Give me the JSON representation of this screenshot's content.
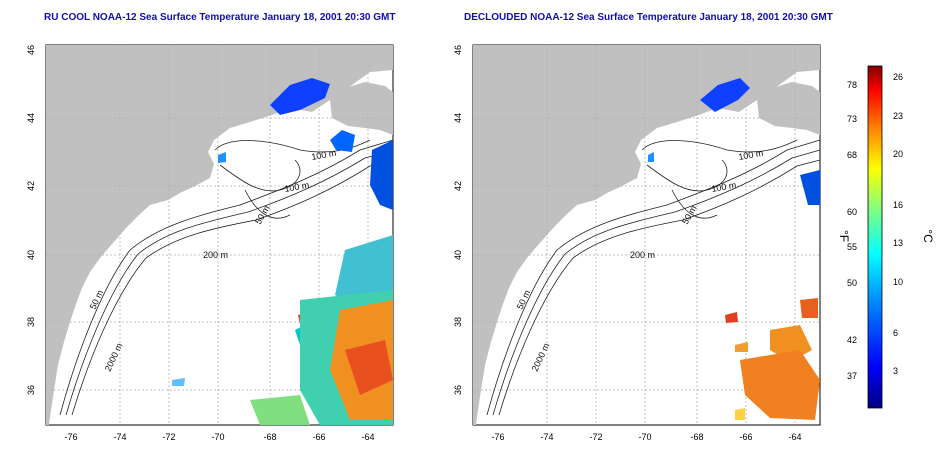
{
  "panels": [
    {
      "title": "RU COOL NOAA-12 Sea Surface Temperature January 18, 2001 20:30 GMT",
      "x_ticks": [
        "-76",
        "-74",
        "-72",
        "-70",
        "-68",
        "-66",
        "-64"
      ],
      "y_ticks": [
        "36",
        "38",
        "40",
        "42",
        "44",
        "46"
      ],
      "contour_labels": [
        "100 m",
        "100 m",
        "50 m",
        "200 m",
        "50 m",
        "2000 m"
      ]
    },
    {
      "title": "DECLOUDED NOAA-12 Sea Surface Temperature January 18, 2001 20:30 GMT",
      "x_ticks": [
        "-76",
        "-74",
        "-72",
        "-70",
        "-68",
        "-66",
        "-64"
      ],
      "y_ticks": [
        "36",
        "38",
        "40",
        "42",
        "44",
        "46"
      ],
      "contour_labels": [
        "100 m",
        "100 m",
        "50 m",
        "200 m",
        "50 m",
        "2000 m"
      ]
    }
  ],
  "colorbar": {
    "f_label": "°F",
    "c_label": "°C",
    "f_ticks": [
      "78",
      "73",
      "68",
      "60",
      "55",
      "50",
      "42",
      "37"
    ],
    "c_ticks": [
      "26",
      "23",
      "20",
      "16",
      "13",
      "10",
      "6",
      "3"
    ]
  },
  "colors": {
    "land": "#c0c0c0",
    "title": "#1010a8",
    "grid": "#b0b0b0"
  }
}
